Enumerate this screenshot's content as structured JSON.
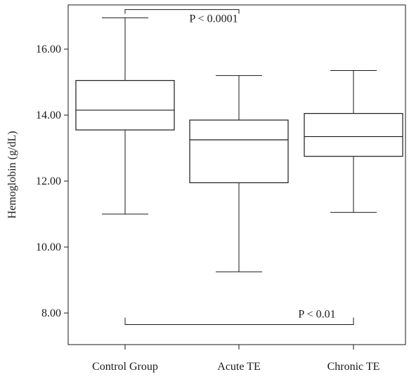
{
  "chart_data": {
    "type": "box",
    "title": "",
    "xlabel": "",
    "ylabel": "Hemoglobin (g/dL)",
    "ylim": [
      6.8,
      17.9
    ],
    "yticks": [
      8,
      10,
      12,
      14,
      16
    ],
    "ytick_labels": [
      "8.00",
      "10.00",
      "12.00",
      "14.00",
      "16.00"
    ],
    "categories": [
      "Control Group",
      "Acute TE",
      "Chronic TE"
    ],
    "boxes": [
      {
        "category": "Control Group",
        "min": 11.0,
        "q1": 13.55,
        "median": 14.15,
        "q3": 15.05,
        "max": 16.95
      },
      {
        "category": "Acute TE",
        "min": 9.25,
        "q1": 11.95,
        "median": 13.25,
        "q3": 13.85,
        "max": 15.2
      },
      {
        "category": "Chronic TE",
        "min": 11.05,
        "q1": 12.75,
        "median": 13.35,
        "q3": 14.05,
        "max": 15.35
      }
    ],
    "annotations": [
      {
        "text": "P < 0.0001",
        "from": "Control Group",
        "to": "Acute TE",
        "bracket_y": 17.2,
        "position": "top"
      },
      {
        "text": "P < 0.01",
        "from": "Control Group",
        "to": "Chronic TE",
        "bracket_y": 7.65,
        "position": "bottom"
      }
    ],
    "grid": false,
    "legend": "none"
  }
}
